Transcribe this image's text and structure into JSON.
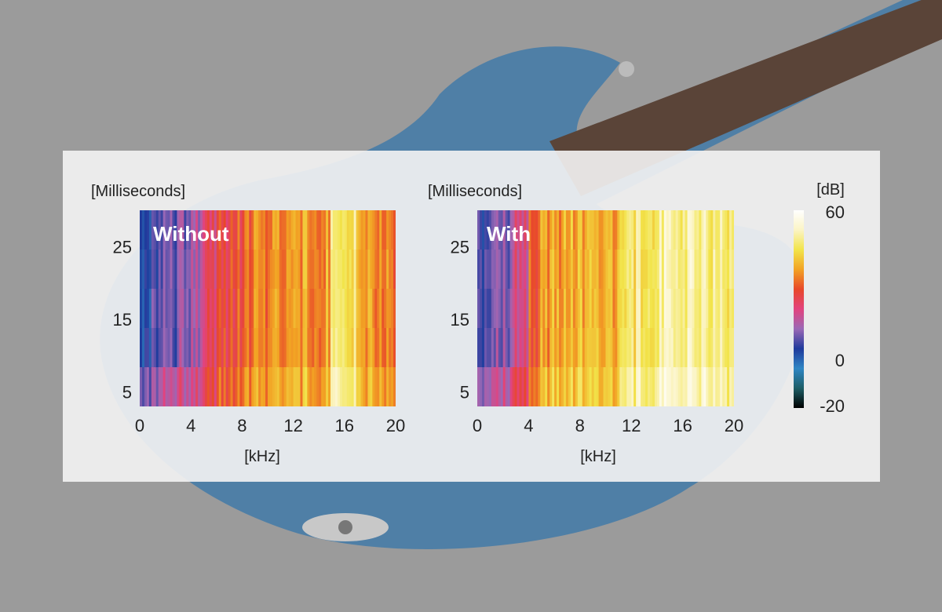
{
  "chart_data": [
    {
      "type": "heatmap",
      "panel_label": "Without",
      "ylabel": "[Milliseconds]",
      "xlabel": "[kHz]",
      "xlim": [
        0,
        20
      ],
      "ylim": [
        3,
        30
      ],
      "x_ticks": [
        "0",
        "4",
        "8",
        "12",
        "16",
        "20"
      ],
      "y_ticks": [
        "5",
        "15",
        "25"
      ],
      "x_tick_values": [
        0,
        4,
        8,
        12,
        16,
        20
      ],
      "y_tick_values": [
        5,
        15,
        25
      ],
      "frequency_bands_khz": [
        0,
        1,
        2,
        3,
        4,
        5,
        6,
        7,
        8,
        9,
        10,
        11,
        12,
        13,
        14,
        15,
        16,
        17,
        18,
        19
      ],
      "level_db": [
        4,
        8,
        10,
        12,
        16,
        22,
        26,
        28,
        30,
        34,
        36,
        36,
        35,
        36,
        36,
        44,
        46,
        36,
        35,
        32
      ]
    },
    {
      "type": "heatmap",
      "panel_label": "With",
      "ylabel": "[Milliseconds]",
      "xlabel": "[kHz]",
      "xlim": [
        0,
        20
      ],
      "ylim": [
        3,
        30
      ],
      "x_ticks": [
        "0",
        "4",
        "8",
        "12",
        "16",
        "20"
      ],
      "y_ticks": [
        "5",
        "15",
        "25"
      ],
      "x_tick_values": [
        0,
        4,
        8,
        12,
        16,
        20
      ],
      "y_tick_values": [
        5,
        15,
        25
      ],
      "frequency_bands_khz": [
        0,
        1,
        2,
        3,
        4,
        5,
        6,
        7,
        8,
        9,
        10,
        11,
        12,
        13,
        14,
        15,
        16,
        17,
        18,
        19
      ],
      "level_db": [
        6,
        10,
        12,
        20,
        30,
        36,
        36,
        38,
        37,
        40,
        38,
        44,
        46,
        48,
        50,
        48,
        50,
        49,
        48,
        46
      ]
    }
  ],
  "colorbar": {
    "unit": "[dB]",
    "range": [
      -20,
      60
    ],
    "ticks": [
      "60",
      "0",
      "-20"
    ],
    "tick_values": [
      60,
      0,
      -20
    ],
    "colors": [
      "#000000",
      "#1d5e66",
      "#2f86c4",
      "#1f3a9c",
      "#9a68b6",
      "#e2437e",
      "#e8482a",
      "#f2a224",
      "#f2e44a",
      "#fbf4c4",
      "#ffffff"
    ]
  }
}
